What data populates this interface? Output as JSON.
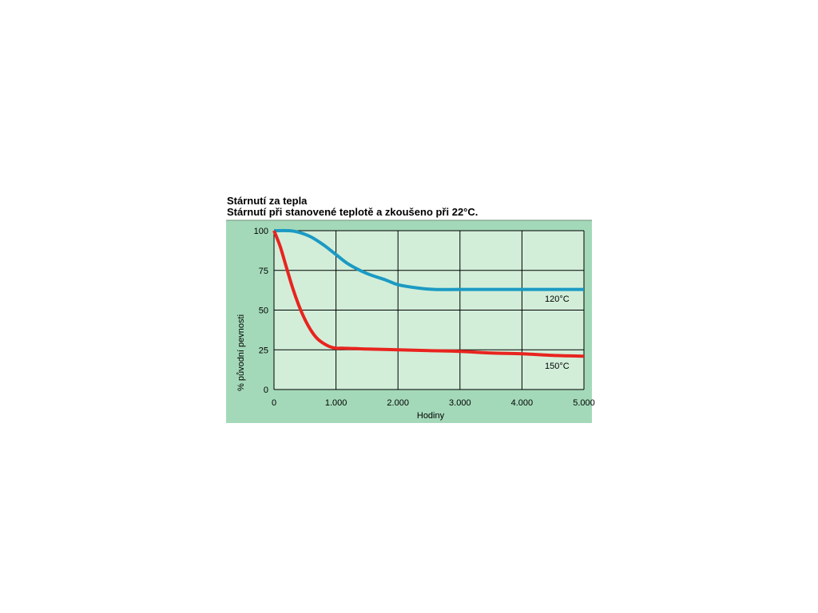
{
  "colors": {
    "frame_background": "#a3d9b9",
    "plot_background": "#d2eed9",
    "grid": "#000000",
    "series_120": "#1b9ac3",
    "series_150": "#e8241f"
  },
  "chart_data": {
    "type": "line",
    "title": "Stárnutí za tepla",
    "subtitle": "Stárnutí při stanovené teplotě a zkoušeno při 22°C.",
    "xlabel": "Hodiny",
    "ylabel": "% původní pevnosti",
    "xlim": [
      0,
      5000
    ],
    "ylim": [
      0,
      100
    ],
    "x_ticks": [
      0,
      1000,
      2000,
      3000,
      4000,
      5000
    ],
    "x_tick_labels": [
      "0",
      "1.000",
      "2.000",
      "3.000",
      "4.000",
      "5.000"
    ],
    "y_ticks": [
      0,
      25,
      50,
      75,
      100
    ],
    "y_tick_labels": [
      "0",
      "25",
      "50",
      "75",
      "100"
    ],
    "grid": true,
    "series": [
      {
        "name": "120°C",
        "color_key": "series_120",
        "x": [
          0,
          250,
          400,
          600,
          800,
          1000,
          1200,
          1500,
          1800,
          2000,
          2300,
          2600,
          3000,
          3500,
          4000,
          4500,
          5000
        ],
        "y": [
          100,
          100,
          99,
          96,
          91,
          85,
          79,
          73,
          69,
          66,
          64,
          63,
          63,
          63,
          63,
          63,
          63
        ]
      },
      {
        "name": "150°C",
        "color_key": "series_150",
        "x": [
          0,
          100,
          200,
          300,
          400,
          500,
          600,
          700,
          800,
          900,
          1000,
          1100,
          1500,
          2000,
          2500,
          3000,
          3500,
          4000,
          4500,
          5000
        ],
        "y": [
          100,
          90,
          77,
          64,
          53,
          44,
          37,
          32,
          29,
          27,
          26,
          26,
          25.5,
          25,
          24.5,
          24,
          23,
          22.5,
          21.5,
          21
        ]
      }
    ]
  }
}
